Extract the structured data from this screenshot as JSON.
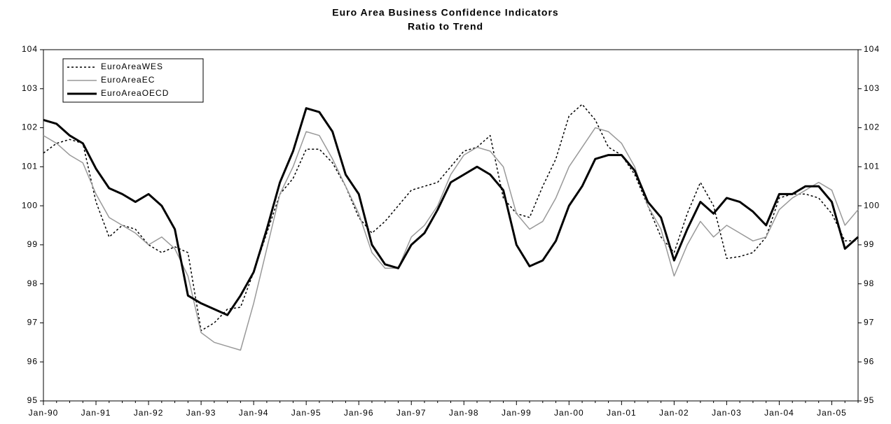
{
  "chart_data": {
    "type": "line",
    "title": "Euro Area Business Confidence Indicators",
    "subtitle": "Ratio to Trend",
    "categories": [
      "Jan-90",
      null,
      null,
      null,
      "Jan-91",
      null,
      null,
      null,
      "Jan-92",
      null,
      null,
      null,
      "Jan-93",
      null,
      null,
      null,
      "Jan-94",
      null,
      null,
      null,
      "Jan-95",
      null,
      null,
      null,
      "Jan-96",
      null,
      null,
      null,
      "Jan-97",
      null,
      null,
      null,
      "Jan-98",
      null,
      null,
      null,
      "Jan-99",
      null,
      null,
      null,
      "Jan-00",
      null,
      null,
      null,
      "Jan-01",
      null,
      null,
      null,
      "Jan-02",
      null,
      null,
      null,
      "Jan-03",
      null,
      null,
      null,
      "Jan-04",
      null,
      null,
      null,
      "Jan-05",
      null,
      null
    ],
    "series": [
      {
        "name": "EuroAreaWES",
        "color": "#000000",
        "width": 1.5,
        "dash": true,
        "values": [
          101.35,
          101.6,
          101.7,
          101.6,
          100.1,
          99.2,
          99.5,
          99.4,
          99.0,
          98.8,
          98.95,
          98.8,
          96.8,
          97.0,
          97.35,
          97.4,
          98.3,
          99.3,
          100.3,
          100.7,
          101.45,
          101.45,
          101.1,
          100.5,
          99.7,
          99.3,
          99.6,
          100.0,
          100.4,
          100.5,
          100.6,
          101.0,
          101.4,
          101.5,
          101.8,
          100.2,
          99.8,
          99.7,
          100.5,
          101.2,
          102.3,
          102.6,
          102.2,
          101.5,
          101.3,
          100.8,
          100.0,
          99.2,
          98.8,
          99.8,
          100.6,
          100.0,
          98.65,
          98.7,
          98.8,
          99.2,
          100.2,
          100.3,
          100.3,
          100.2,
          99.8,
          99.1,
          99.1
        ]
      },
      {
        "name": "EuroAreaEC",
        "color": "#999999",
        "width": 1.5,
        "dash": false,
        "values": [
          101.8,
          101.6,
          101.3,
          101.1,
          100.3,
          99.7,
          99.5,
          99.3,
          99.0,
          99.2,
          98.9,
          98.2,
          96.75,
          96.5,
          96.4,
          96.3,
          97.5,
          98.9,
          100.3,
          101.0,
          101.9,
          101.8,
          101.2,
          100.5,
          99.8,
          98.8,
          98.4,
          98.4,
          99.2,
          99.5,
          100.0,
          100.8,
          101.3,
          101.5,
          101.4,
          101.0,
          99.8,
          99.4,
          99.6,
          100.2,
          101.0,
          101.5,
          102.0,
          101.9,
          101.6,
          101.0,
          100.0,
          99.4,
          98.2,
          99.0,
          99.6,
          99.2,
          99.5,
          99.3,
          99.1,
          99.2,
          99.9,
          100.2,
          100.4,
          100.6,
          100.4,
          99.5,
          99.9
        ]
      },
      {
        "name": "EuroAreaOECD",
        "color": "#000000",
        "width": 3,
        "dash": false,
        "values": [
          102.2,
          102.1,
          101.8,
          101.6,
          100.95,
          100.45,
          100.3,
          100.1,
          100.3,
          100.0,
          99.4,
          97.7,
          97.5,
          97.35,
          97.2,
          97.7,
          98.3,
          99.4,
          100.6,
          101.4,
          102.5,
          102.4,
          101.9,
          100.8,
          100.3,
          99.0,
          98.5,
          98.4,
          99.0,
          99.3,
          99.9,
          100.6,
          100.8,
          101.0,
          100.8,
          100.4,
          99.0,
          98.45,
          98.6,
          99.1,
          100.0,
          100.5,
          101.2,
          101.3,
          101.3,
          100.9,
          100.1,
          99.7,
          98.6,
          99.4,
          100.1,
          99.8,
          100.2,
          100.1,
          99.85,
          99.5,
          100.3,
          100.3,
          100.5,
          100.5,
          100.1,
          98.9,
          99.2
        ]
      }
    ],
    "ylim": [
      95,
      104
    ],
    "yticks": [
      95,
      96,
      97,
      98,
      99,
      100,
      101,
      102,
      103,
      104
    ],
    "y2lim": [
      95,
      104
    ],
    "y2ticks": [
      95,
      96,
      97,
      98,
      99,
      100,
      101,
      102,
      103,
      104
    ],
    "legend": "upper left",
    "grid": false
  }
}
